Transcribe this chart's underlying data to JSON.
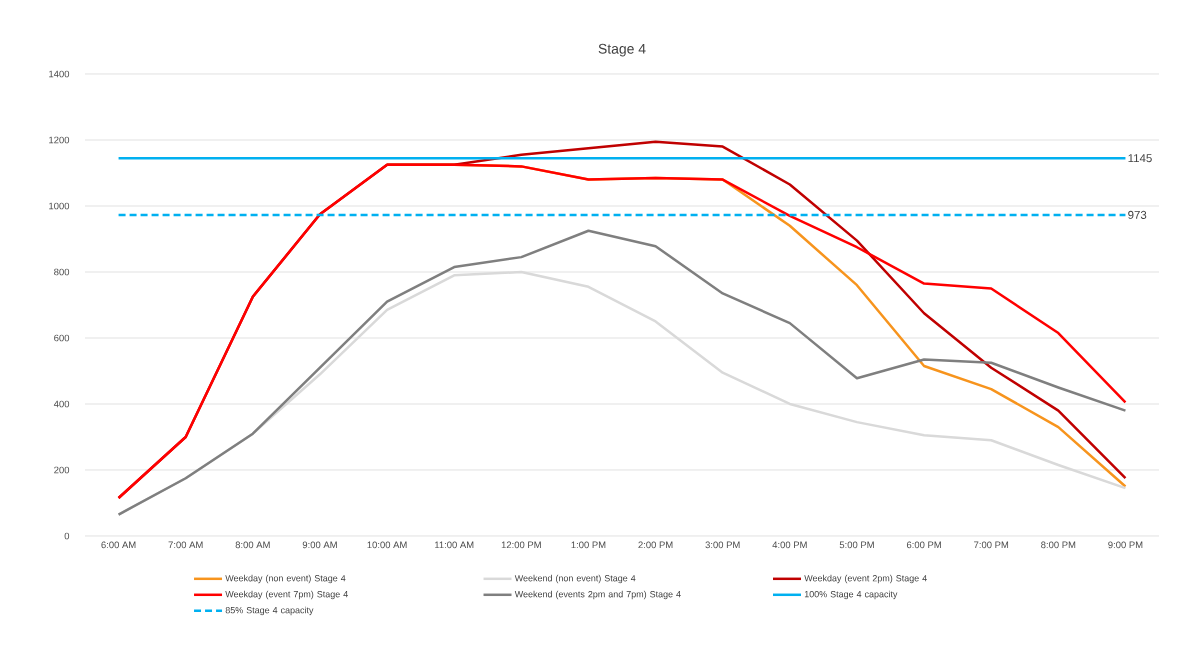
{
  "chart_data": {
    "type": "line",
    "title": "Stage 4",
    "categories": [
      "6:00 AM",
      "7:00 AM",
      "8:00 AM",
      "9:00 AM",
      "10:00 AM",
      "11:00 AM",
      "12:00 PM",
      "1:00 PM",
      "2:00 PM",
      "3:00 PM",
      "4:00 PM",
      "5:00 PM",
      "6:00 PM",
      "7:00 PM",
      "8:00 PM",
      "9:00 PM"
    ],
    "ylim": [
      0,
      1400
    ],
    "yticks": [
      0,
      200,
      400,
      600,
      800,
      1000,
      1200,
      1400
    ],
    "grid": "y",
    "legend": "bottom",
    "series": [
      {
        "name": "Weekday (non event) Stage 4",
        "color": "#f7941d",
        "values": [
          null,
          null,
          null,
          null,
          1125,
          1125,
          1120,
          1080,
          1085,
          1080,
          940,
          760,
          515,
          445,
          330,
          150
        ]
      },
      {
        "name": "Weekend (non event) Stage 4",
        "color": "#d9d9d9",
        "values": [
          65,
          175,
          310,
          490,
          685,
          790,
          800,
          755,
          650,
          495,
          400,
          345,
          305,
          290,
          215,
          145
        ]
      },
      {
        "name": "Weekday (event 2pm) Stage 4",
        "color": "#c00000",
        "values": [
          115,
          300,
          725,
          975,
          1125,
          1125,
          1155,
          1175,
          1195,
          1180,
          1065,
          895,
          675,
          510,
          380,
          175
        ]
      },
      {
        "name": "Weekday (event 7pm) Stage 4",
        "color": "#ff0000",
        "values": [
          115,
          300,
          725,
          975,
          1125,
          1125,
          1120,
          1080,
          1085,
          1080,
          970,
          875,
          765,
          750,
          615,
          405
        ]
      },
      {
        "name": "Weekend (events 2pm and 7pm) Stage 4",
        "color": "#7f7f7f",
        "values": [
          65,
          175,
          310,
          510,
          710,
          815,
          845,
          925,
          878,
          735,
          645,
          478,
          535,
          525,
          450,
          380
        ]
      },
      {
        "name": "100% Stage 4 capacity",
        "color": "#00b0f0",
        "line_style": "solid",
        "values": [
          1145,
          1145,
          1145,
          1145,
          1145,
          1145,
          1145,
          1145,
          1145,
          1145,
          1145,
          1145,
          1145,
          1145,
          1145,
          1145
        ],
        "value_labels": [
          null,
          null,
          null,
          null,
          null,
          null,
          null,
          null,
          null,
          null,
          null,
          null,
          null,
          null,
          null,
          "1145"
        ]
      },
      {
        "name": "85% Stage 4 capacity",
        "color": "#00b0f0",
        "line_style": "dashed",
        "values": [
          973,
          973,
          973,
          973,
          973,
          973,
          973,
          973,
          973,
          973,
          973,
          973,
          973,
          973,
          973,
          973
        ],
        "value_labels": [
          null,
          null,
          null,
          null,
          null,
          null,
          null,
          null,
          null,
          null,
          null,
          null,
          null,
          null,
          null,
          "973"
        ]
      }
    ]
  }
}
